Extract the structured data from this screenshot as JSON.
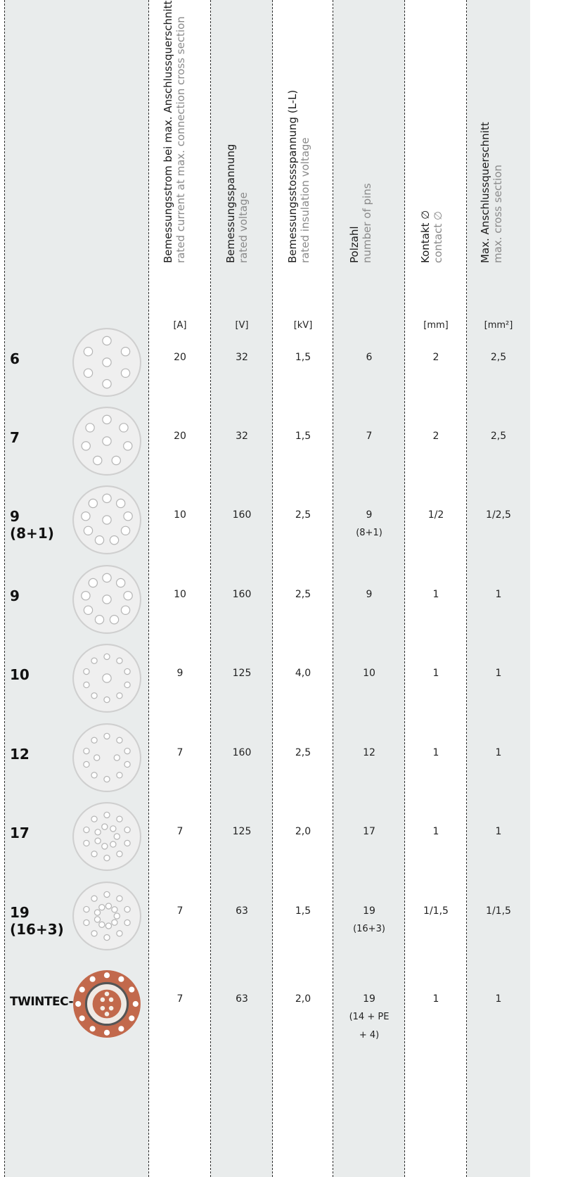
{
  "headers": [
    {
      "de": "Bemessungsstrom bei max. Anschlussquerschnitt",
      "en": "rated current at max. connection cross section",
      "unit": "[A]"
    },
    {
      "de": "Bemessungsspannung",
      "en": "rated voltage",
      "unit": "[V]"
    },
    {
      "de": "Bemessungsstossspannung (L-L)",
      "en": "rated insulation voltage",
      "unit": "[kV]"
    },
    {
      "de": "Polzahl",
      "en": "number of pins",
      "unit": ""
    },
    {
      "de": "Kontakt ∅",
      "en": "contact ∅",
      "unit": "[mm]"
    },
    {
      "de": "Max. Anschlussquerschnitt",
      "en": "max. cross section",
      "unit": "[mm²]"
    }
  ],
  "rows": [
    {
      "label": "6",
      "label2": "",
      "current": "20",
      "voltage": "32",
      "kv": "1,5",
      "pins": "6",
      "pins_sub": "",
      "contact": "2",
      "cross": "2,5"
    },
    {
      "label": "7",
      "label2": "",
      "current": "20",
      "voltage": "32",
      "kv": "1,5",
      "pins": "7",
      "pins_sub": "",
      "contact": "2",
      "cross": "2,5"
    },
    {
      "label": "9",
      "label2": "(8+1)",
      "current": "10",
      "voltage": "160",
      "kv": "2,5",
      "pins": "9",
      "pins_sub": "(8+1)",
      "contact": "1/2",
      "cross": "1/2,5"
    },
    {
      "label": "9",
      "label2": "",
      "current": "10",
      "voltage": "160",
      "kv": "2,5",
      "pins": "9",
      "pins_sub": "",
      "contact": "1",
      "cross": "1"
    },
    {
      "label": "10",
      "label2": "",
      "current": "9",
      "voltage": "125",
      "kv": "4,0",
      "pins": "10",
      "pins_sub": "",
      "contact": "1",
      "cross": "1"
    },
    {
      "label": "12",
      "label2": "",
      "current": "7",
      "voltage": "160",
      "kv": "2,5",
      "pins": "12",
      "pins_sub": "",
      "contact": "1",
      "cross": "1"
    },
    {
      "label": "17",
      "label2": "",
      "current": "7",
      "voltage": "125",
      "kv": "2,0",
      "pins": "17",
      "pins_sub": "",
      "contact": "1",
      "cross": "1"
    },
    {
      "label": "19",
      "label2": "(16+3)",
      "current": "7",
      "voltage": "63",
      "kv": "1,5",
      "pins": "19",
      "pins_sub": "(16+3)",
      "contact": "1/1,5",
      "cross": "1/1,5"
    },
    {
      "label": "TWINTEC-B",
      "label2": "",
      "current": "7",
      "voltage": "63",
      "kv": "2,0",
      "pins": "19",
      "pins_sub": "(14 + PE",
      "pins_sub2": "+ 4)",
      "contact": "1",
      "cross": "1"
    }
  ],
  "colors": {
    "shade": "#e9ecec",
    "twintec": "#c2694c",
    "dash": "#2e2e2e"
  }
}
